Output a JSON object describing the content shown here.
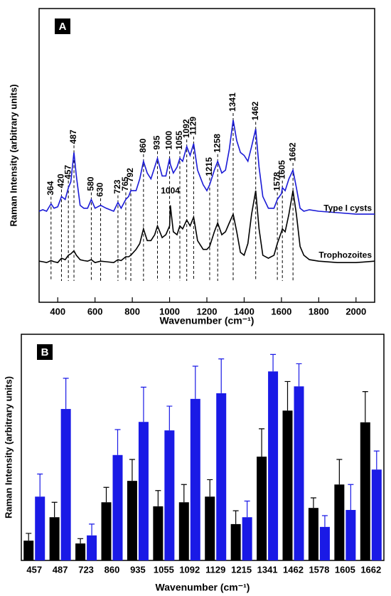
{
  "chart_data": [
    {
      "type": "line",
      "panel_label": "A",
      "x_label": "Wavenumber (cm⁻¹)",
      "y_label": "Raman Intensity (arbitrary units)",
      "xlim": [
        300,
        2100
      ],
      "ylim": [
        0,
        10
      ],
      "xticks": [
        400,
        600,
        800,
        1000,
        1200,
        1400,
        1600,
        1800,
        2000
      ],
      "x": [
        300,
        320,
        340,
        364,
        380,
        400,
        420,
        440,
        457,
        470,
        487,
        500,
        520,
        540,
        560,
        580,
        600,
        630,
        660,
        700,
        723,
        740,
        765,
        780,
        792,
        820,
        840,
        860,
        880,
        900,
        920,
        935,
        960,
        980,
        1000,
        1004,
        1020,
        1040,
        1055,
        1070,
        1092,
        1110,
        1129,
        1150,
        1180,
        1200,
        1215,
        1240,
        1258,
        1280,
        1300,
        1320,
        1341,
        1360,
        1380,
        1400,
        1420,
        1440,
        1462,
        1480,
        1500,
        1530,
        1560,
        1578,
        1600,
        1605,
        1620,
        1640,
        1662,
        1680,
        1700,
        1720,
        1750,
        1800,
        1900,
        2000,
        2100
      ],
      "series": [
        {
          "name": "Type I cysts",
          "color": "#1a1ad6",
          "values": [
            3.1,
            3.15,
            3.1,
            3.35,
            3.2,
            3.25,
            3.6,
            3.5,
            3.9,
            4.1,
            5.1,
            4.3,
            3.3,
            3.2,
            3.2,
            3.5,
            3.2,
            3.3,
            3.2,
            3.1,
            3.4,
            3.2,
            3.5,
            3.6,
            3.8,
            3.8,
            4.2,
            4.8,
            4.4,
            4.2,
            4.6,
            4.9,
            4.3,
            4.3,
            4.9,
            4.7,
            4.4,
            4.6,
            4.9,
            4.8,
            5.3,
            5.0,
            5.4,
            4.5,
            4.0,
            3.8,
            4.0,
            4.5,
            4.8,
            4.4,
            4.5,
            5.2,
            6.2,
            5.5,
            5.1,
            5.0,
            4.8,
            5.3,
            5.9,
            4.6,
            3.6,
            3.2,
            3.2,
            3.5,
            3.7,
            3.9,
            3.8,
            4.2,
            4.5,
            3.9,
            3.2,
            3.1,
            3.15,
            3.1,
            3.05,
            3.0,
            3.0
          ]
        },
        {
          "name": "Trophozoites",
          "color": "#000000",
          "values": [
            1.4,
            1.38,
            1.35,
            1.42,
            1.38,
            1.35,
            1.5,
            1.45,
            1.6,
            1.65,
            1.75,
            1.6,
            1.45,
            1.42,
            1.4,
            1.45,
            1.35,
            1.4,
            1.38,
            1.35,
            1.45,
            1.42,
            1.55,
            1.55,
            1.6,
            1.8,
            2.0,
            2.5,
            2.1,
            2.1,
            2.3,
            2.6,
            2.2,
            2.3,
            2.6,
            3.3,
            2.4,
            2.3,
            2.6,
            2.5,
            2.8,
            2.6,
            2.9,
            2.1,
            1.8,
            1.8,
            1.9,
            2.4,
            2.7,
            2.3,
            2.4,
            2.7,
            3.0,
            2.4,
            1.7,
            1.6,
            2.0,
            3.0,
            3.8,
            2.5,
            1.6,
            1.5,
            1.6,
            2.0,
            2.4,
            2.5,
            2.4,
            3.0,
            3.8,
            3.0,
            1.9,
            1.6,
            1.45,
            1.4,
            1.35,
            1.35,
            1.4
          ]
        }
      ],
      "cyst_peaks": [
        364,
        420,
        457,
        487,
        580,
        630,
        723,
        765,
        792,
        860,
        935,
        1000,
        1055,
        1092,
        1129,
        1215,
        1258,
        1341,
        1462,
        1578,
        1605,
        1662
      ],
      "trophozoite_peaks": [
        1004
      ]
    },
    {
      "type": "bar",
      "panel_label": "B",
      "x_label": "Wavenumber (cm⁻¹)",
      "y_label": "Raman Intensity (arbitrary units)",
      "ylim": [
        0,
        5.6
      ],
      "categories": [
        "457",
        "487",
        "723",
        "860",
        "935",
        "1055",
        "1092",
        "1129",
        "1215",
        "1341",
        "1462",
        "1578",
        "1605",
        "1662"
      ],
      "series": [
        {
          "color": "#000000",
          "values": [
            0.49,
            1.07,
            0.42,
            1.44,
            1.97,
            1.34,
            1.44,
            1.58,
            0.9,
            2.57,
            3.71,
            1.3,
            1.88,
            3.42
          ],
          "errors": [
            0.18,
            0.37,
            0.12,
            0.37,
            0.53,
            0.39,
            0.44,
            0.42,
            0.33,
            0.69,
            0.72,
            0.25,
            0.62,
            0.76
          ]
        },
        {
          "color": "#1a1ae6",
          "values": [
            1.58,
            3.75,
            0.62,
            2.61,
            3.43,
            3.22,
            4.0,
            4.14,
            1.07,
            4.68,
            4.31,
            0.83,
            1.25,
            2.25
          ],
          "errors": [
            0.56,
            0.76,
            0.28,
            0.63,
            0.86,
            0.6,
            0.81,
            0.85,
            0.4,
            0.42,
            0.56,
            0.28,
            0.63,
            0.46
          ]
        }
      ]
    }
  ]
}
